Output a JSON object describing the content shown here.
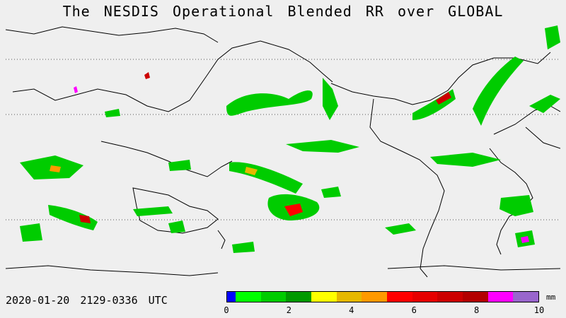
{
  "title": "The NESDIS  Operational  Blended RR over GLOBAL",
  "footer": {
    "datetime": "2020-01-20  2129-0336  UTC"
  },
  "colorbar": {
    "unit": "mm",
    "tick_labels": [
      "0",
      "2",
      "4",
      "6",
      "8",
      "10"
    ],
    "colors": [
      "#0000ff",
      "#00ff00",
      "#00cc00",
      "#009900",
      "#ffff00",
      "#e6b800",
      "#ff9900",
      "#ff0000",
      "#e60000",
      "#cc0000",
      "#b30000",
      "#ff00ff",
      "#9966cc"
    ],
    "range": [
      0,
      10
    ]
  },
  "map": {
    "projection": "cylindrical-equidistant",
    "background": "#efefef",
    "coastline_color": "#000000",
    "gridline_style": "dotted"
  }
}
